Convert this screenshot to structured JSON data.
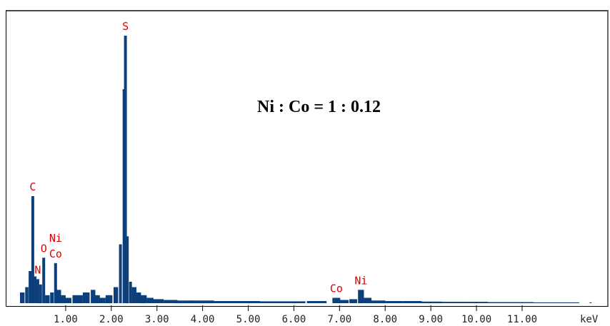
{
  "chart_data": {
    "type": "bar",
    "title": "",
    "xlabel": "keV",
    "ylabel": "",
    "xlim": [
      0,
      12.8
    ],
    "ylim": [
      0,
      100
    ],
    "grid": false,
    "x_ticks": [
      "1.00",
      "2.00",
      "3.00",
      "4.00",
      "5.00",
      "6.00",
      "7.00",
      "8.00",
      "9.00",
      "10.00",
      "11.00"
    ],
    "x_tick_values": [
      1,
      2,
      3,
      4,
      5,
      6,
      7,
      8,
      9,
      10,
      11
    ],
    "annotation": "Ni : Co = 1 : 0.12",
    "peaks": [
      {
        "label": "C",
        "x": 0.28,
        "y": 40
      },
      {
        "label": "N",
        "x": 0.39,
        "y": 9
      },
      {
        "label": "O",
        "x": 0.52,
        "y": 17
      },
      {
        "label": "Ni\nCo",
        "x": 0.78,
        "y": 15
      },
      {
        "label": "S",
        "x": 2.31,
        "y": 100
      },
      {
        "label": "Co",
        "x": 6.93,
        "y": 2
      },
      {
        "label": "Ni",
        "x": 7.47,
        "y": 5
      }
    ],
    "series": [
      {
        "x": [
          0.05,
          0.15,
          0.22,
          0.28,
          0.33,
          0.39,
          0.45,
          0.52,
          0.6,
          0.7,
          0.78,
          0.85,
          0.95,
          1.05,
          1.2,
          1.3,
          1.45,
          1.6,
          1.7,
          1.8,
          1.95,
          2.1,
          2.2,
          2.28,
          2.31,
          2.35,
          2.42,
          2.5,
          2.6,
          2.7,
          2.85,
          3.0,
          3.3,
          3.6,
          4.0,
          4.5,
          5.0,
          5.5,
          6.0,
          6.5,
          6.93,
          7.1,
          7.3,
          7.47,
          7.6,
          7.8,
          8.2,
          8.6,
          9.0,
          9.5,
          10.0,
          10.5,
          11.0,
          11.5,
          12.0,
          12.5
        ],
        "y": [
          4,
          6,
          12,
          40,
          10,
          9,
          7,
          17,
          3,
          4,
          15,
          5,
          3,
          2,
          3,
          3,
          4,
          5,
          3,
          2,
          3,
          6,
          22,
          80,
          100,
          25,
          8,
          6,
          4,
          3,
          2,
          1.5,
          1.2,
          1,
          1,
          0.8,
          0.8,
          0.7,
          0.7,
          0.8,
          2,
          1.2,
          1.5,
          5,
          2,
          1,
          0.8,
          0.8,
          0.6,
          0.5,
          0.5,
          0.4,
          0.4,
          0.3,
          0.3,
          0.3
        ]
      }
    ]
  }
}
